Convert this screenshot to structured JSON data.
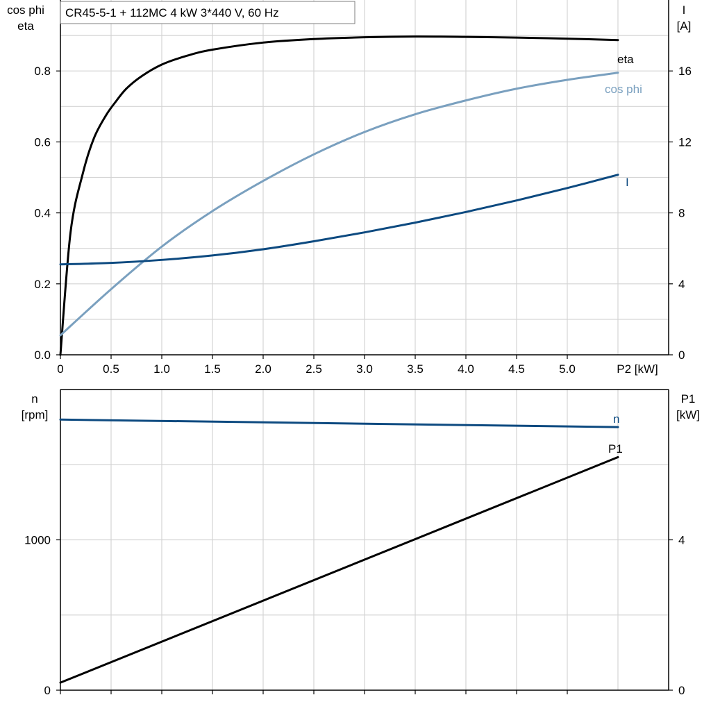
{
  "title": "CR45-5-1 + 112MC   4 kW   3*440 V, 60 Hz",
  "colors": {
    "eta": "#000000",
    "cos_phi": "#7aa0bf",
    "I": "#0d4a80",
    "n": "#0d4a80",
    "P1": "#000000",
    "grid": "#d4d4d4"
  },
  "chart_data": [
    {
      "type": "line",
      "x_axis": {
        "label": "P2 [kW]",
        "range": [
          0,
          6.0
        ],
        "tick_values": [
          0,
          0.5,
          1.0,
          1.5,
          2.0,
          2.5,
          3.0,
          3.5,
          4.0,
          4.5,
          5.0
        ],
        "tick_labels": [
          "0",
          "0.5",
          "1.0",
          "1.5",
          "2.0",
          "2.5",
          "3.0",
          "3.5",
          "4.0",
          "4.5",
          "5.0"
        ]
      },
      "y_left": {
        "label_line1": "cos phi",
        "label_line2": "eta",
        "range": [
          0,
          1.0
        ],
        "tick_values": [
          0,
          0.2,
          0.4,
          0.6,
          0.8
        ],
        "tick_labels": [
          "0.0",
          "0.2",
          "0.4",
          "0.6",
          "0.8"
        ]
      },
      "y_right": {
        "label_line1": "I",
        "label_line2": "[A]",
        "range": [
          0,
          20
        ],
        "tick_values": [
          0,
          4,
          8,
          12,
          16
        ],
        "tick_labels": [
          "0",
          "4",
          "8",
          "12",
          "16"
        ]
      },
      "grid": true,
      "series": [
        {
          "name": "eta",
          "axis": "left",
          "color": "#000000",
          "x": [
            0,
            0.1,
            0.22,
            0.33,
            0.45,
            0.55,
            0.65,
            0.8,
            1.0,
            1.25,
            1.5,
            2.0,
            2.5,
            3.0,
            3.5,
            4.0,
            4.5,
            5.0,
            5.5
          ],
          "y": [
            0.0,
            0.345,
            0.51,
            0.61,
            0.675,
            0.715,
            0.75,
            0.785,
            0.818,
            0.843,
            0.86,
            0.88,
            0.89,
            0.895,
            0.897,
            0.896,
            0.894,
            0.891,
            0.887
          ]
        },
        {
          "name": "cos phi",
          "axis": "left",
          "color": "#7aa0bf",
          "x": [
            0,
            0.5,
            1.0,
            1.5,
            2.0,
            2.5,
            3.0,
            3.5,
            4.0,
            4.5,
            5.0,
            5.5
          ],
          "y": [
            0.055,
            0.185,
            0.305,
            0.405,
            0.49,
            0.565,
            0.628,
            0.678,
            0.717,
            0.75,
            0.775,
            0.795
          ]
        },
        {
          "name": "I",
          "axis": "right",
          "color": "#0d4a80",
          "x": [
            0,
            0.5,
            1.0,
            1.5,
            2.0,
            2.5,
            3.0,
            3.5,
            4.0,
            4.5,
            5.0,
            5.5
          ],
          "y": [
            5.1,
            5.18,
            5.35,
            5.6,
            5.95,
            6.4,
            6.9,
            7.45,
            8.05,
            8.7,
            9.4,
            10.15
          ]
        }
      ]
    },
    {
      "type": "line",
      "x_axis": {
        "label": "",
        "range": [
          0,
          6.0
        ],
        "tick_values": [
          0,
          0.5,
          1.0,
          1.5,
          2.0,
          2.5,
          3.0,
          3.5,
          4.0,
          4.5,
          5.0
        ],
        "tick_labels": []
      },
      "y_left": {
        "label_line1": "n",
        "label_line2": "[rpm]",
        "range": [
          0,
          2000
        ],
        "tick_values": [
          0,
          1000
        ],
        "tick_labels": [
          "0",
          "1000"
        ]
      },
      "y_right": {
        "label_line1": "P1",
        "label_line2": "[kW]",
        "range": [
          0,
          8
        ],
        "tick_values": [
          0,
          4
        ],
        "tick_labels": [
          "0",
          "4"
        ]
      },
      "grid": true,
      "series": [
        {
          "name": "n",
          "axis": "left",
          "color": "#0d4a80",
          "x": [
            0,
            5.5
          ],
          "y": [
            1800,
            1750
          ]
        },
        {
          "name": "P1",
          "axis": "right",
          "color": "#000000",
          "x": [
            0,
            5.5
          ],
          "y": [
            0.2,
            6.2
          ]
        }
      ]
    }
  ]
}
